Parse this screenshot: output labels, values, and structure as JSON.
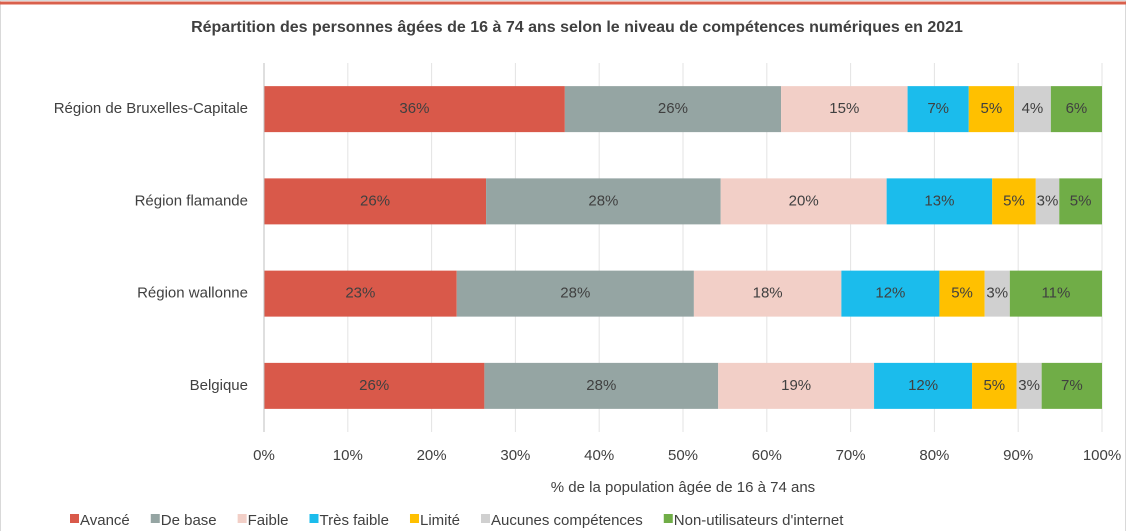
{
  "chart_data": {
    "type": "stacked_barh",
    "title": "Répartition des personnes âgées de 16 à 74 ans selon le niveau de compétences numériques en 2021",
    "xlabel": "% de la population âgée de 16 à 74 ans",
    "categories": [
      "Région de Bruxelles-Capitale",
      "Région flamande",
      "Région wallonne",
      "Belgique"
    ],
    "series": [
      {
        "name": "Avancé",
        "color": "#d9594a",
        "values": [
          35.9,
          26.5,
          23.0,
          26.3
        ],
        "value_labels": [
          "36%",
          "26%",
          "23%",
          "26%"
        ]
      },
      {
        "name": "De base",
        "color": "#95a5a3",
        "values": [
          25.8,
          28.0,
          28.3,
          27.9
        ],
        "value_labels": [
          "26%",
          "28%",
          "28%",
          "28%"
        ]
      },
      {
        "name": "Faible",
        "color": "#f2cfc7",
        "values": [
          15.1,
          19.8,
          17.6,
          18.6
        ],
        "value_labels": [
          "15%",
          "20%",
          "18%",
          "19%"
        ]
      },
      {
        "name": "Très faible",
        "color": "#1bbcec",
        "values": [
          7.3,
          12.6,
          11.7,
          11.7
        ],
        "value_labels": [
          "7%",
          "13%",
          "12%",
          "12%"
        ]
      },
      {
        "name": "Limité",
        "color": "#ffc000",
        "values": [
          5.4,
          5.2,
          5.4,
          5.3
        ],
        "value_labels": [
          "5%",
          "5%",
          "5%",
          "5%"
        ]
      },
      {
        "name": "Aucunes compétences",
        "color": "#d0d0d0",
        "values": [
          4.4,
          2.8,
          3.0,
          3.0
        ],
        "value_labels": [
          "4%",
          "3%",
          "3%",
          "3%"
        ]
      },
      {
        "name": "Non-utilisateurs d'internet",
        "color": "#70ad47",
        "values": [
          6.1,
          5.1,
          11.0,
          7.2
        ],
        "value_labels": [
          "6%",
          "5%",
          "11%",
          "7%"
        ]
      }
    ],
    "xlim": [
      0,
      100
    ],
    "xticks": [
      {
        "value": 0,
        "label": "0%"
      },
      {
        "value": 10,
        "label": "10%"
      },
      {
        "value": 20,
        "label": "20%"
      },
      {
        "value": 30,
        "label": "30%"
      },
      {
        "value": 40,
        "label": "40%"
      },
      {
        "value": 50,
        "label": "50%"
      },
      {
        "value": 60,
        "label": "60%"
      },
      {
        "value": 70,
        "label": "70%"
      },
      {
        "value": 80,
        "label": "80%"
      },
      {
        "value": 90,
        "label": "90%"
      },
      {
        "value": 100,
        "label": "100%"
      }
    ],
    "grid": true,
    "legend": "bottom"
  }
}
